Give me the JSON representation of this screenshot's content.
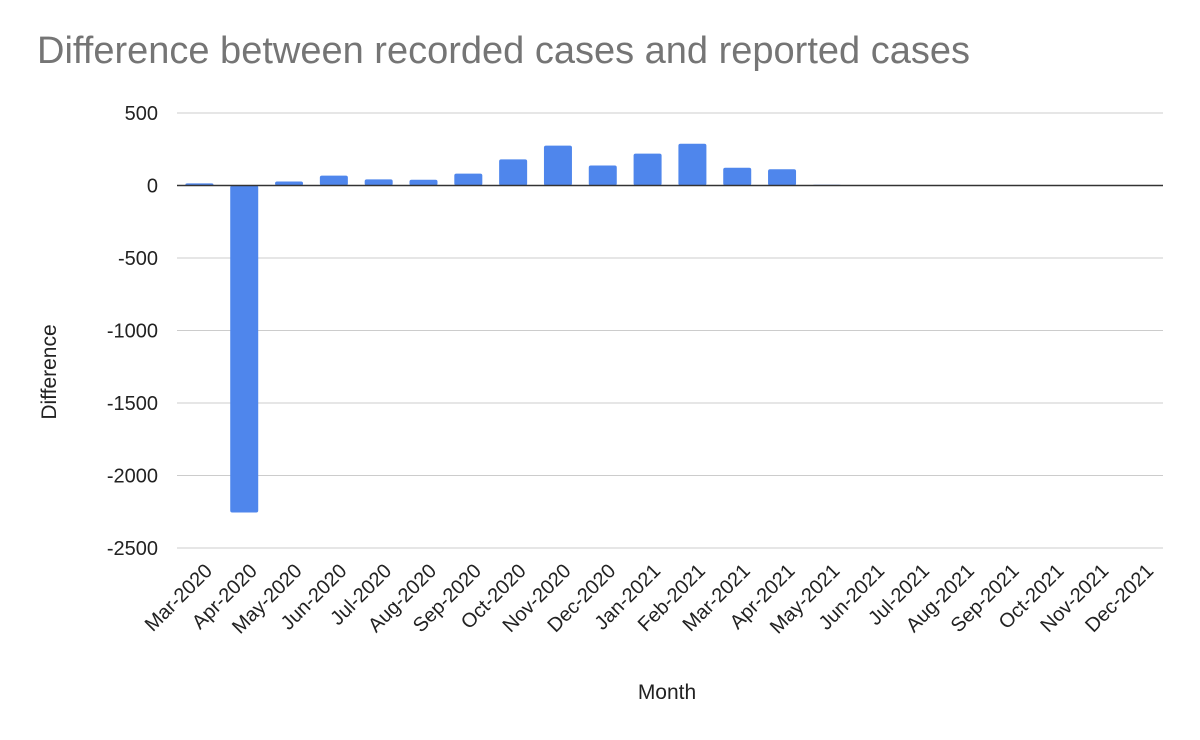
{
  "chart_data": {
    "type": "bar",
    "title": "Difference between recorded cases and reported cases",
    "xlabel": "Month",
    "ylabel": "Difference",
    "ylim": [
      -2500,
      500
    ],
    "yticks": [
      500,
      0,
      -500,
      -1000,
      -1500,
      -2000,
      -2500
    ],
    "grid": true,
    "bar_color": "#4f86ec",
    "categories": [
      "Mar-2020",
      "Apr-2020",
      "May-2020",
      "Jun-2020",
      "Jul-2020",
      "Aug-2020",
      "Sep-2020",
      "Oct-2020",
      "Nov-2020",
      "Dec-2020",
      "Jan-2021",
      "Feb-2021",
      "Mar-2021",
      "Apr-2021",
      "May-2021",
      "Jun-2021",
      "Jul-2021",
      "Aug-2021",
      "Sep-2021",
      "Oct-2021",
      "Nov-2021",
      "Dec-2021"
    ],
    "series": [
      {
        "name": "Difference",
        "values": [
          15,
          -2255,
          28,
          68,
          42,
          40,
          82,
          180,
          275,
          138,
          220,
          288,
          122,
          112,
          5,
          0,
          0,
          0,
          0,
          0,
          0,
          0
        ]
      }
    ]
  }
}
